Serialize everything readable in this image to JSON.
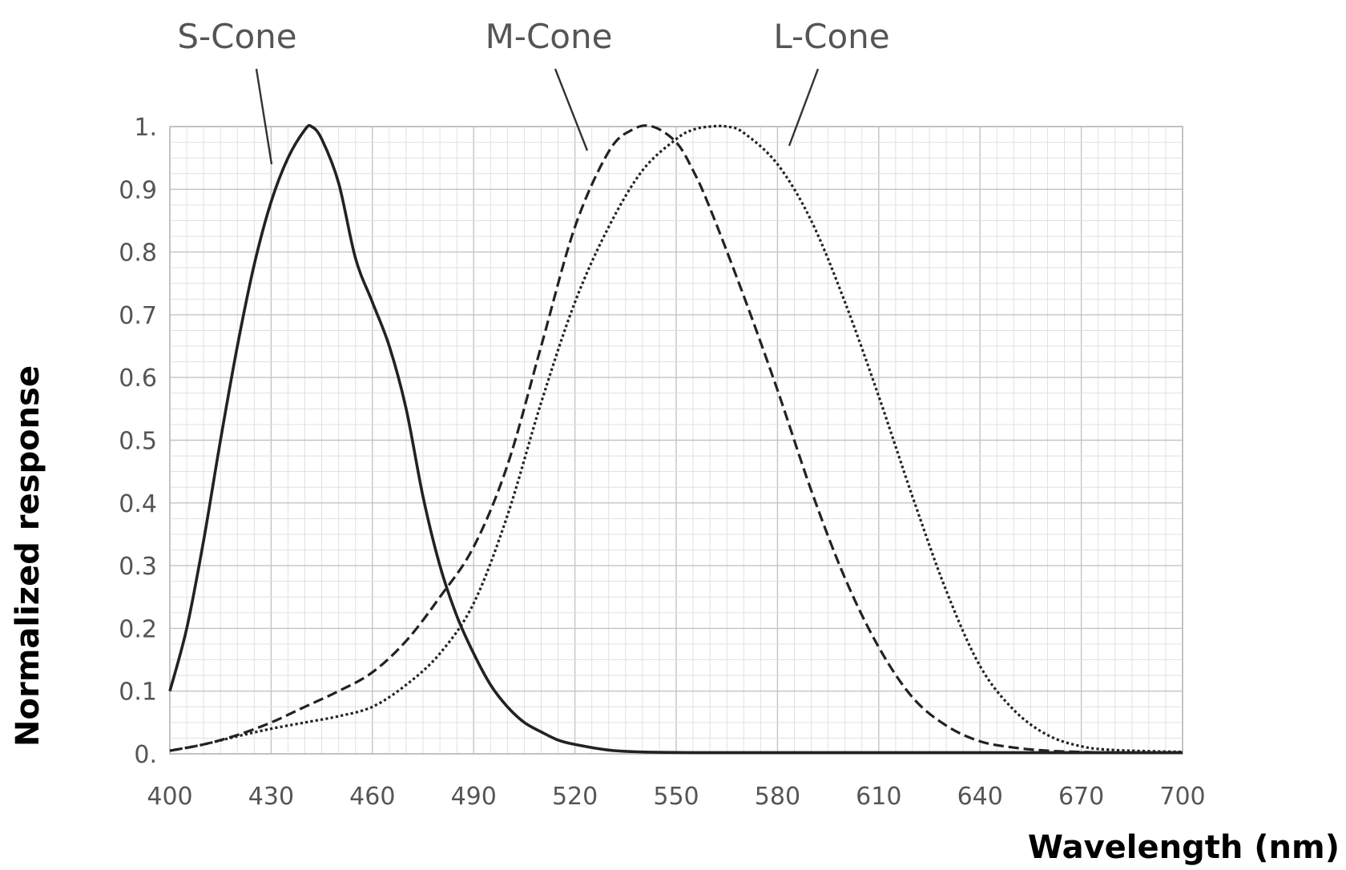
{
  "chart_data": {
    "type": "line",
    "xlabel": "Wavelength (nm)",
    "ylabel": "Normalized response",
    "xlim": [
      400,
      700
    ],
    "ylim": [
      0,
      1
    ],
    "x_ticks": [
      "400",
      "430",
      "460",
      "490",
      "520",
      "550",
      "580",
      "610",
      "640",
      "670",
      "700"
    ],
    "y_ticks": [
      "0.",
      "0.1",
      "0.2",
      "0.3",
      "0.4",
      "0.5",
      "0.6",
      "0.7",
      "0.8",
      "0.9",
      "1."
    ],
    "grid": true,
    "series": [
      {
        "name": "S-Cone",
        "line_style": "solid",
        "color": "#222222",
        "x": [
          400,
          405,
          410,
          415,
          420,
          425,
          430,
          435,
          440,
          442,
          445,
          450,
          455,
          460,
          465,
          470,
          475,
          480,
          485,
          490,
          495,
          500,
          505,
          510,
          515,
          520,
          530,
          540,
          560,
          600,
          650,
          700
        ],
        "y": [
          0.1,
          0.2,
          0.34,
          0.5,
          0.65,
          0.78,
          0.88,
          0.95,
          0.995,
          1.0,
          0.98,
          0.91,
          0.79,
          0.72,
          0.65,
          0.55,
          0.41,
          0.3,
          0.22,
          0.16,
          0.11,
          0.075,
          0.05,
          0.035,
          0.022,
          0.015,
          0.006,
          0.003,
          0.002,
          0.002,
          0.002,
          0.002
        ]
      },
      {
        "name": "M-Cone",
        "line_style": "dashed",
        "color": "#222222",
        "x": [
          400,
          410,
          420,
          430,
          440,
          450,
          460,
          470,
          480,
          490,
          500,
          510,
          520,
          530,
          537,
          543,
          550,
          555,
          560,
          570,
          580,
          590,
          600,
          610,
          620,
          630,
          640,
          650,
          660,
          670,
          680,
          700
        ],
        "y": [
          0.005,
          0.015,
          0.03,
          0.05,
          0.075,
          0.1,
          0.13,
          0.18,
          0.25,
          0.33,
          0.46,
          0.65,
          0.84,
          0.96,
          0.995,
          1.0,
          0.975,
          0.93,
          0.87,
          0.73,
          0.58,
          0.42,
          0.28,
          0.17,
          0.09,
          0.045,
          0.02,
          0.01,
          0.005,
          0.003,
          0.002,
          0.002
        ]
      },
      {
        "name": "L-Cone",
        "line_style": "dotted",
        "color": "#222222",
        "x": [
          400,
          410,
          420,
          430,
          440,
          450,
          460,
          470,
          480,
          490,
          500,
          510,
          520,
          530,
          540,
          550,
          555,
          560,
          565,
          570,
          580,
          590,
          600,
          610,
          620,
          630,
          640,
          650,
          660,
          670,
          680,
          700
        ],
        "y": [
          0.005,
          0.015,
          0.028,
          0.04,
          0.05,
          0.06,
          0.075,
          0.11,
          0.16,
          0.24,
          0.38,
          0.56,
          0.72,
          0.84,
          0.93,
          0.98,
          0.995,
          1.0,
          1.0,
          0.99,
          0.94,
          0.85,
          0.72,
          0.57,
          0.41,
          0.26,
          0.14,
          0.07,
          0.03,
          0.012,
          0.006,
          0.003
        ]
      }
    ]
  }
}
